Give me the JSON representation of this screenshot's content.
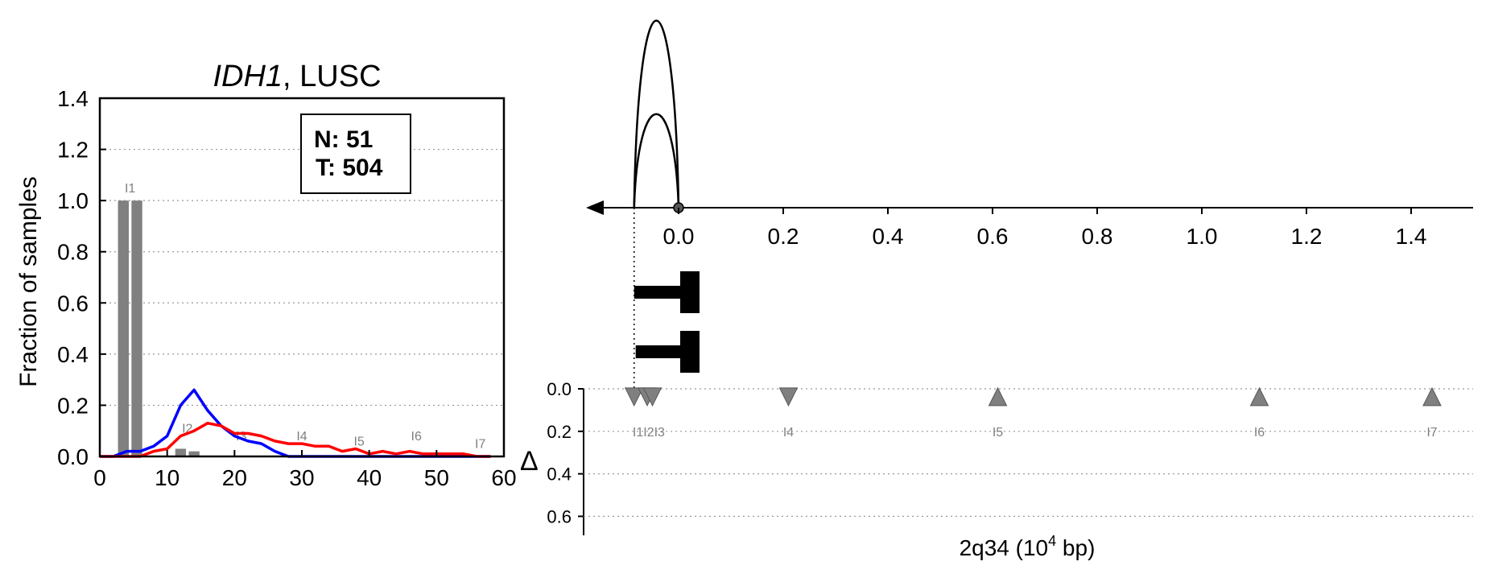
{
  "chart_data": [
    {
      "type": "line",
      "title_gene": "IDH1",
      "title_rest": ", LUSC",
      "ylabel": "Fraction of samples",
      "xlim": [
        0,
        60
      ],
      "ylim": [
        0,
        1.4
      ],
      "xticks": [
        0,
        10,
        20,
        30,
        40,
        50,
        60
      ],
      "yticks": [
        0.0,
        0.2,
        0.4,
        0.6,
        0.8,
        1.0,
        1.2,
        1.4
      ],
      "grid": "horizontal dotted",
      "legend_box": {
        "line1": "N: 51",
        "line2": "T: 504",
        "placement": "top-right"
      },
      "colors": {
        "normal": "#0000ff",
        "tumor": "#ff0000",
        "bars": "#808080"
      },
      "bars": [
        {
          "x": 3.5,
          "value": 1.0
        },
        {
          "x": 5.5,
          "value": 1.0
        },
        {
          "x": 12,
          "value": 0.03
        },
        {
          "x": 14,
          "value": 0.02
        }
      ],
      "bar_labels": [
        {
          "label": "I1",
          "x": 4.5,
          "y": 1.02
        },
        {
          "label": "I2",
          "x": 13,
          "y": 0.08
        },
        {
          "label": "I3",
          "x": 21,
          "y": 0.05
        },
        {
          "label": "I4",
          "x": 30,
          "y": 0.05
        },
        {
          "label": "I5",
          "x": 38.5,
          "y": 0.03
        },
        {
          "label": "I6",
          "x": 47,
          "y": 0.05
        },
        {
          "label": "I7",
          "x": 56.5,
          "y": 0.02
        }
      ],
      "series": [
        {
          "x": [
            0,
            2,
            4,
            6,
            8,
            10,
            12,
            14,
            16,
            18,
            20,
            22,
            24,
            26,
            28,
            30,
            32,
            34,
            36,
            38,
            40,
            42,
            44,
            46,
            48,
            50,
            52,
            54,
            56,
            58
          ],
          "values": [
            0.0,
            0.0,
            0.02,
            0.02,
            0.04,
            0.08,
            0.2,
            0.26,
            0.18,
            0.12,
            0.08,
            0.06,
            0.05,
            0.02,
            0.0,
            0.0,
            0.0,
            0.0,
            0.0,
            0.0,
            0.0,
            0.0,
            0.0,
            0.0,
            0.0,
            0.0,
            0.0,
            0.0,
            0.0,
            0.0
          ]
        },
        {
          "x": [
            0,
            2,
            4,
            6,
            8,
            10,
            12,
            14,
            16,
            18,
            20,
            22,
            24,
            26,
            28,
            30,
            32,
            34,
            36,
            38,
            40,
            42,
            44,
            46,
            48,
            50,
            52,
            54,
            56,
            58
          ],
          "values": [
            0.0,
            0.0,
            0.0,
            0.0,
            0.02,
            0.03,
            0.08,
            0.1,
            0.13,
            0.12,
            0.09,
            0.09,
            0.08,
            0.06,
            0.05,
            0.05,
            0.04,
            0.04,
            0.02,
            0.03,
            0.01,
            0.02,
            0.01,
            0.02,
            0.01,
            0.01,
            0.01,
            0.01,
            0.0,
            0.0
          ]
        }
      ]
    },
    {
      "type": "scatter",
      "xlabel_main": "2q34 (10",
      "xlabel_sup": "4",
      "xlabel_tail": " bp)",
      "delta_label": "Δ",
      "xlim": [
        -0.14,
        1.53
      ],
      "xticks": [
        0.0,
        0.2,
        0.4,
        0.6,
        0.8,
        1.0,
        1.2,
        1.4
      ],
      "ylim": [
        0.0,
        0.7
      ],
      "yticks": [
        0.0,
        0.2,
        0.4,
        0.6
      ],
      "marker_color": "#808080",
      "arcs": [
        {
          "from": -0.085,
          "to": 0.0,
          "height": 1.0
        },
        {
          "from": -0.085,
          "to": 0.0,
          "height": 0.5
        }
      ],
      "transcripts": [
        {
          "start": -0.085,
          "end": 0.04
        },
        {
          "start": -0.082,
          "end": 0.04
        }
      ],
      "points": [
        {
          "label": "I1",
          "x": -0.085,
          "delta": 0.03,
          "direction": "down"
        },
        {
          "label": "I2",
          "x": -0.06,
          "delta": 0.03,
          "direction": "down"
        },
        {
          "label": "I3",
          "x": -0.05,
          "delta": 0.03,
          "direction": "down"
        },
        {
          "label": "I4",
          "x": 0.21,
          "delta": 0.03,
          "direction": "down"
        },
        {
          "label": "I5",
          "x": 0.61,
          "delta": 0.03,
          "direction": "up"
        },
        {
          "label": "I6",
          "x": 1.11,
          "delta": 0.03,
          "direction": "up"
        },
        {
          "label": "I7",
          "x": 1.44,
          "delta": 0.03,
          "direction": "up"
        }
      ],
      "point_label_text": "I1I2I3"
    }
  ]
}
